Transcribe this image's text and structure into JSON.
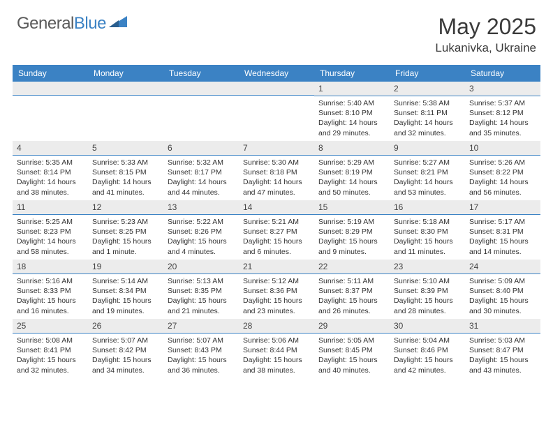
{
  "brand": {
    "word1": "General",
    "word2": "Blue"
  },
  "title": "May 2025",
  "location": "Lukanivka, Ukraine",
  "colors": {
    "header_bg": "#3b82c4",
    "header_text": "#ffffff",
    "num_bg": "#ececec",
    "num_border": "#3b82c4",
    "body_text": "#333333",
    "page_bg": "#ffffff"
  },
  "day_names": [
    "Sunday",
    "Monday",
    "Tuesday",
    "Wednesday",
    "Thursday",
    "Friday",
    "Saturday"
  ],
  "weeks": [
    [
      {
        "n": "",
        "sr": "",
        "ss": "",
        "dl1": "",
        "dl2": ""
      },
      {
        "n": "",
        "sr": "",
        "ss": "",
        "dl1": "",
        "dl2": ""
      },
      {
        "n": "",
        "sr": "",
        "ss": "",
        "dl1": "",
        "dl2": ""
      },
      {
        "n": "",
        "sr": "",
        "ss": "",
        "dl1": "",
        "dl2": ""
      },
      {
        "n": "1",
        "sr": "Sunrise: 5:40 AM",
        "ss": "Sunset: 8:10 PM",
        "dl1": "Daylight: 14 hours",
        "dl2": "and 29 minutes."
      },
      {
        "n": "2",
        "sr": "Sunrise: 5:38 AM",
        "ss": "Sunset: 8:11 PM",
        "dl1": "Daylight: 14 hours",
        "dl2": "and 32 minutes."
      },
      {
        "n": "3",
        "sr": "Sunrise: 5:37 AM",
        "ss": "Sunset: 8:12 PM",
        "dl1": "Daylight: 14 hours",
        "dl2": "and 35 minutes."
      }
    ],
    [
      {
        "n": "4",
        "sr": "Sunrise: 5:35 AM",
        "ss": "Sunset: 8:14 PM",
        "dl1": "Daylight: 14 hours",
        "dl2": "and 38 minutes."
      },
      {
        "n": "5",
        "sr": "Sunrise: 5:33 AM",
        "ss": "Sunset: 8:15 PM",
        "dl1": "Daylight: 14 hours",
        "dl2": "and 41 minutes."
      },
      {
        "n": "6",
        "sr": "Sunrise: 5:32 AM",
        "ss": "Sunset: 8:17 PM",
        "dl1": "Daylight: 14 hours",
        "dl2": "and 44 minutes."
      },
      {
        "n": "7",
        "sr": "Sunrise: 5:30 AM",
        "ss": "Sunset: 8:18 PM",
        "dl1": "Daylight: 14 hours",
        "dl2": "and 47 minutes."
      },
      {
        "n": "8",
        "sr": "Sunrise: 5:29 AM",
        "ss": "Sunset: 8:19 PM",
        "dl1": "Daylight: 14 hours",
        "dl2": "and 50 minutes."
      },
      {
        "n": "9",
        "sr": "Sunrise: 5:27 AM",
        "ss": "Sunset: 8:21 PM",
        "dl1": "Daylight: 14 hours",
        "dl2": "and 53 minutes."
      },
      {
        "n": "10",
        "sr": "Sunrise: 5:26 AM",
        "ss": "Sunset: 8:22 PM",
        "dl1": "Daylight: 14 hours",
        "dl2": "and 56 minutes."
      }
    ],
    [
      {
        "n": "11",
        "sr": "Sunrise: 5:25 AM",
        "ss": "Sunset: 8:23 PM",
        "dl1": "Daylight: 14 hours",
        "dl2": "and 58 minutes."
      },
      {
        "n": "12",
        "sr": "Sunrise: 5:23 AM",
        "ss": "Sunset: 8:25 PM",
        "dl1": "Daylight: 15 hours",
        "dl2": "and 1 minute."
      },
      {
        "n": "13",
        "sr": "Sunrise: 5:22 AM",
        "ss": "Sunset: 8:26 PM",
        "dl1": "Daylight: 15 hours",
        "dl2": "and 4 minutes."
      },
      {
        "n": "14",
        "sr": "Sunrise: 5:21 AM",
        "ss": "Sunset: 8:27 PM",
        "dl1": "Daylight: 15 hours",
        "dl2": "and 6 minutes."
      },
      {
        "n": "15",
        "sr": "Sunrise: 5:19 AM",
        "ss": "Sunset: 8:29 PM",
        "dl1": "Daylight: 15 hours",
        "dl2": "and 9 minutes."
      },
      {
        "n": "16",
        "sr": "Sunrise: 5:18 AM",
        "ss": "Sunset: 8:30 PM",
        "dl1": "Daylight: 15 hours",
        "dl2": "and 11 minutes."
      },
      {
        "n": "17",
        "sr": "Sunrise: 5:17 AM",
        "ss": "Sunset: 8:31 PM",
        "dl1": "Daylight: 15 hours",
        "dl2": "and 14 minutes."
      }
    ],
    [
      {
        "n": "18",
        "sr": "Sunrise: 5:16 AM",
        "ss": "Sunset: 8:33 PM",
        "dl1": "Daylight: 15 hours",
        "dl2": "and 16 minutes."
      },
      {
        "n": "19",
        "sr": "Sunrise: 5:14 AM",
        "ss": "Sunset: 8:34 PM",
        "dl1": "Daylight: 15 hours",
        "dl2": "and 19 minutes."
      },
      {
        "n": "20",
        "sr": "Sunrise: 5:13 AM",
        "ss": "Sunset: 8:35 PM",
        "dl1": "Daylight: 15 hours",
        "dl2": "and 21 minutes."
      },
      {
        "n": "21",
        "sr": "Sunrise: 5:12 AM",
        "ss": "Sunset: 8:36 PM",
        "dl1": "Daylight: 15 hours",
        "dl2": "and 23 minutes."
      },
      {
        "n": "22",
        "sr": "Sunrise: 5:11 AM",
        "ss": "Sunset: 8:37 PM",
        "dl1": "Daylight: 15 hours",
        "dl2": "and 26 minutes."
      },
      {
        "n": "23",
        "sr": "Sunrise: 5:10 AM",
        "ss": "Sunset: 8:39 PM",
        "dl1": "Daylight: 15 hours",
        "dl2": "and 28 minutes."
      },
      {
        "n": "24",
        "sr": "Sunrise: 5:09 AM",
        "ss": "Sunset: 8:40 PM",
        "dl1": "Daylight: 15 hours",
        "dl2": "and 30 minutes."
      }
    ],
    [
      {
        "n": "25",
        "sr": "Sunrise: 5:08 AM",
        "ss": "Sunset: 8:41 PM",
        "dl1": "Daylight: 15 hours",
        "dl2": "and 32 minutes."
      },
      {
        "n": "26",
        "sr": "Sunrise: 5:07 AM",
        "ss": "Sunset: 8:42 PM",
        "dl1": "Daylight: 15 hours",
        "dl2": "and 34 minutes."
      },
      {
        "n": "27",
        "sr": "Sunrise: 5:07 AM",
        "ss": "Sunset: 8:43 PM",
        "dl1": "Daylight: 15 hours",
        "dl2": "and 36 minutes."
      },
      {
        "n": "28",
        "sr": "Sunrise: 5:06 AM",
        "ss": "Sunset: 8:44 PM",
        "dl1": "Daylight: 15 hours",
        "dl2": "and 38 minutes."
      },
      {
        "n": "29",
        "sr": "Sunrise: 5:05 AM",
        "ss": "Sunset: 8:45 PM",
        "dl1": "Daylight: 15 hours",
        "dl2": "and 40 minutes."
      },
      {
        "n": "30",
        "sr": "Sunrise: 5:04 AM",
        "ss": "Sunset: 8:46 PM",
        "dl1": "Daylight: 15 hours",
        "dl2": "and 42 minutes."
      },
      {
        "n": "31",
        "sr": "Sunrise: 5:03 AM",
        "ss": "Sunset: 8:47 PM",
        "dl1": "Daylight: 15 hours",
        "dl2": "and 43 minutes."
      }
    ]
  ]
}
